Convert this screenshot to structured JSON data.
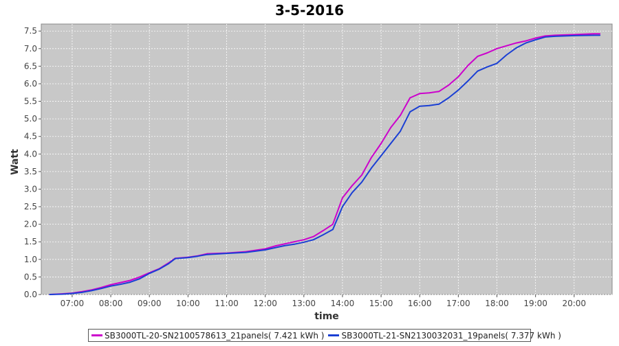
{
  "chart_data": {
    "type": "line",
    "title": "3-5-2016",
    "xlabel": "time",
    "ylabel": "Watt",
    "x_ticks": [
      "07:00",
      "08:00",
      "09:00",
      "10:00",
      "11:00",
      "12:00",
      "13:00",
      "14:00",
      "15:00",
      "16:00",
      "17:00",
      "18:00",
      "19:00",
      "20:00"
    ],
    "xlim": [
      "06:12",
      "20:59"
    ],
    "ylim": [
      0.0,
      7.7
    ],
    "y_ticks": [
      "0.0",
      "0.5",
      "1.0",
      "1.5",
      "2.0",
      "2.5",
      "3.0",
      "3.5",
      "4.0",
      "4.5",
      "5.0",
      "5.5",
      "6.0",
      "6.5",
      "7.0",
      "7.5"
    ],
    "grid": true,
    "legend_position": "bottom",
    "background_color": "#c8c8c8",
    "series": [
      {
        "name": "SB3000TL-20-SN2100578613_21panels( 7.421 kWh )",
        "color": "#cc00cc",
        "points": [
          [
            "06:25",
            0.0
          ],
          [
            "06:45",
            0.02
          ],
          [
            "07:00",
            0.04
          ],
          [
            "07:15",
            0.08
          ],
          [
            "07:30",
            0.13
          ],
          [
            "07:45",
            0.2
          ],
          [
            "08:00",
            0.28
          ],
          [
            "08:15",
            0.34
          ],
          [
            "08:30",
            0.4
          ],
          [
            "08:45",
            0.5
          ],
          [
            "09:00",
            0.62
          ],
          [
            "09:15",
            0.73
          ],
          [
            "09:30",
            0.9
          ],
          [
            "09:40",
            1.03
          ],
          [
            "10:00",
            1.06
          ],
          [
            "10:15",
            1.1
          ],
          [
            "10:30",
            1.16
          ],
          [
            "11:00",
            1.18
          ],
          [
            "11:30",
            1.22
          ],
          [
            "12:00",
            1.3
          ],
          [
            "12:15",
            1.38
          ],
          [
            "12:30",
            1.44
          ],
          [
            "12:45",
            1.5
          ],
          [
            "13:00",
            1.56
          ],
          [
            "13:15",
            1.65
          ],
          [
            "13:30",
            1.82
          ],
          [
            "13:45",
            2.0
          ],
          [
            "14:00",
            2.75
          ],
          [
            "14:15",
            3.1
          ],
          [
            "14:30",
            3.4
          ],
          [
            "14:45",
            3.9
          ],
          [
            "15:00",
            4.3
          ],
          [
            "15:15",
            4.75
          ],
          [
            "15:30",
            5.1
          ],
          [
            "15:45",
            5.6
          ],
          [
            "16:00",
            5.72
          ],
          [
            "16:15",
            5.74
          ],
          [
            "16:30",
            5.78
          ],
          [
            "16:45",
            5.96
          ],
          [
            "17:00",
            6.2
          ],
          [
            "17:15",
            6.52
          ],
          [
            "17:30",
            6.78
          ],
          [
            "17:45",
            6.88
          ],
          [
            "18:00",
            7.0
          ],
          [
            "18:15",
            7.08
          ],
          [
            "18:30",
            7.16
          ],
          [
            "18:45",
            7.22
          ],
          [
            "19:00",
            7.3
          ],
          [
            "19:15",
            7.36
          ],
          [
            "19:30",
            7.38
          ],
          [
            "20:00",
            7.4
          ],
          [
            "20:30",
            7.42
          ],
          [
            "20:40",
            7.42
          ]
        ]
      },
      {
        "name": "SB3000TL-21-SN2130032031_19panels( 7.377 kWh )",
        "color": "#1a3fd4",
        "points": [
          [
            "06:25",
            0.0
          ],
          [
            "06:45",
            0.01
          ],
          [
            "07:00",
            0.03
          ],
          [
            "07:15",
            0.06
          ],
          [
            "07:30",
            0.11
          ],
          [
            "07:45",
            0.17
          ],
          [
            "08:00",
            0.24
          ],
          [
            "08:15",
            0.29
          ],
          [
            "08:30",
            0.35
          ],
          [
            "08:45",
            0.45
          ],
          [
            "09:00",
            0.6
          ],
          [
            "09:15",
            0.72
          ],
          [
            "09:30",
            0.88
          ],
          [
            "09:40",
            1.02
          ],
          [
            "10:00",
            1.05
          ],
          [
            "10:15",
            1.09
          ],
          [
            "10:30",
            1.14
          ],
          [
            "11:00",
            1.17
          ],
          [
            "11:30",
            1.2
          ],
          [
            "12:00",
            1.27
          ],
          [
            "12:15",
            1.33
          ],
          [
            "12:30",
            1.39
          ],
          [
            "12:45",
            1.43
          ],
          [
            "13:00",
            1.49
          ],
          [
            "13:15",
            1.56
          ],
          [
            "13:30",
            1.7
          ],
          [
            "13:45",
            1.85
          ],
          [
            "14:00",
            2.5
          ],
          [
            "14:15",
            2.9
          ],
          [
            "14:30",
            3.2
          ],
          [
            "14:45",
            3.6
          ],
          [
            "15:00",
            3.95
          ],
          [
            "15:15",
            4.3
          ],
          [
            "15:30",
            4.65
          ],
          [
            "15:45",
            5.2
          ],
          [
            "16:00",
            5.36
          ],
          [
            "16:15",
            5.38
          ],
          [
            "16:30",
            5.42
          ],
          [
            "16:45",
            5.6
          ],
          [
            "17:00",
            5.82
          ],
          [
            "17:15",
            6.08
          ],
          [
            "17:30",
            6.36
          ],
          [
            "17:45",
            6.48
          ],
          [
            "18:00",
            6.58
          ],
          [
            "18:15",
            6.82
          ],
          [
            "18:30",
            7.02
          ],
          [
            "18:45",
            7.16
          ],
          [
            "19:00",
            7.25
          ],
          [
            "19:15",
            7.33
          ],
          [
            "19:30",
            7.35
          ],
          [
            "20:00",
            7.37
          ],
          [
            "20:30",
            7.38
          ],
          [
            "20:40",
            7.38
          ]
        ]
      }
    ]
  }
}
